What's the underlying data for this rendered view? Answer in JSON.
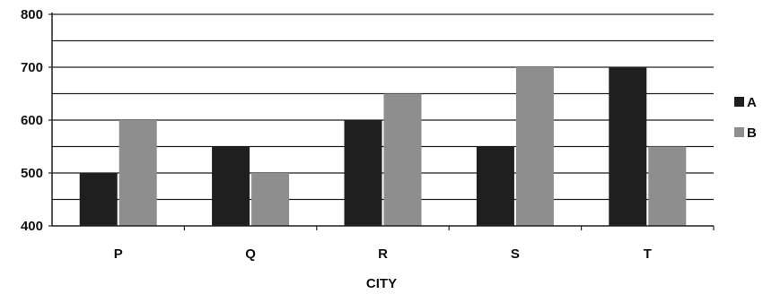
{
  "chart_data": {
    "type": "bar",
    "title": "",
    "xlabel": "CITY",
    "ylabel": "",
    "categories": [
      "P",
      "Q",
      "R",
      "S",
      "T"
    ],
    "series": [
      {
        "name": "A",
        "values": [
          500,
          550,
          600,
          550,
          700
        ],
        "color": "#1f1f1f"
      },
      {
        "name": "B",
        "values": [
          600,
          500,
          650,
          700,
          550
        ],
        "color": "#8e8e8e"
      }
    ],
    "ylim": [
      400,
      800
    ],
    "yticks": [
      400,
      500,
      600,
      700,
      800
    ],
    "grid": true,
    "legend_position": "right"
  }
}
